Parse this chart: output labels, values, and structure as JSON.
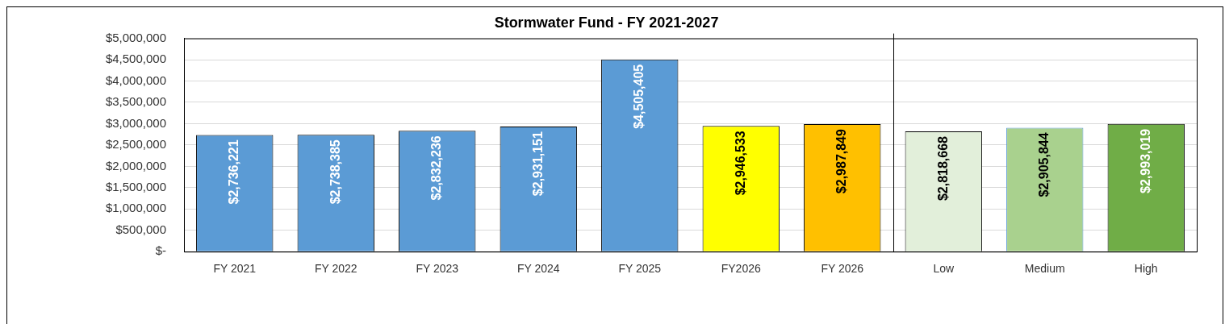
{
  "chart_data": {
    "type": "bar",
    "title": "Stormwater Fund - FY 2021-2027",
    "categories": [
      "FY 2021",
      "FY 2022",
      "FY 2023",
      "FY 2024",
      "FY 2025",
      "FY2026",
      "FY 2026",
      "Low",
      "Medium",
      "High"
    ],
    "values": [
      2736221,
      2738385,
      2832236,
      2931151,
      4505405,
      2946533,
      2987849,
      2818668,
      2905844,
      2993019
    ],
    "colors": [
      "#5b9bd5",
      "#5b9bd5",
      "#5b9bd5",
      "#5b9bd5",
      "#5b9bd5",
      "#ffff00",
      "#ffc000",
      "#e2efda",
      "#a9d18e",
      "#70ad47"
    ],
    "value_labels": [
      "$2,736,221",
      "$2,738,385",
      "$2,832,236",
      "$2,931,151",
      "$4,505,405",
      "$2,946,533",
      "$2,987,849",
      "$2,818,668",
      "$2,905,844",
      "$2,993,019"
    ],
    "ylim": [
      0,
      5000000
    ],
    "yticks": [
      {
        "value": 0,
        "label": "$-"
      },
      {
        "value": 500000,
        "label": "$500,000"
      },
      {
        "value": 1000000,
        "label": "$1,000,000"
      },
      {
        "value": 1500000,
        "label": "$1,500,000"
      },
      {
        "value": 2000000,
        "label": "$2,000,000"
      },
      {
        "value": 2500000,
        "label": "$2,500,000"
      },
      {
        "value": 3000000,
        "label": "$3,000,000"
      },
      {
        "value": 3500000,
        "label": "$3,500,000"
      },
      {
        "value": 4000000,
        "label": "$4,000,000"
      },
      {
        "value": 4500000,
        "label": "$4,500,000"
      },
      {
        "value": 5000000,
        "label": "$5,000,000"
      }
    ],
    "ref_lines": [
      {
        "axis": "x",
        "value": "Low",
        "color": "#000000"
      }
    ],
    "grid": "y",
    "legend": false
  }
}
